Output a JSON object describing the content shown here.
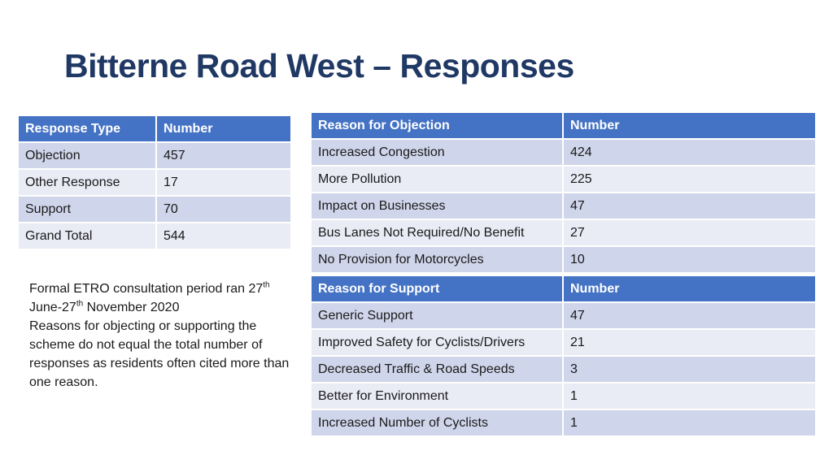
{
  "title": "Bitterne Road West – Responses",
  "response_table": {
    "headers": [
      "Response Type",
      "Number"
    ],
    "rows": [
      [
        "Objection",
        "457"
      ],
      [
        "Other Response",
        "17"
      ],
      [
        "Support",
        "70"
      ],
      [
        "Grand Total",
        "544"
      ]
    ]
  },
  "objection_table": {
    "headers": [
      "Reason for Objection",
      "Number"
    ],
    "rows": [
      [
        "Increased Congestion",
        "424"
      ],
      [
        "More Pollution",
        "225"
      ],
      [
        "Impact on Businesses",
        "47"
      ],
      [
        "Bus Lanes Not Required/No Benefit",
        "27"
      ],
      [
        "No Provision for Motorcycles",
        "10"
      ]
    ]
  },
  "support_table": {
    "headers": [
      "Reason for Support",
      "Number"
    ],
    "rows": [
      [
        "Generic Support",
        "47"
      ],
      [
        "Improved Safety for Cyclists/Drivers",
        "21"
      ],
      [
        "Decreased Traffic & Road Speeds",
        "3"
      ],
      [
        "Better for Environment",
        "1"
      ],
      [
        "Increased Number of Cyclists",
        "1"
      ]
    ]
  },
  "note": {
    "part1": "Formal ETRO consultation period ran 27",
    "sup1": "th",
    "part2": " June-27",
    "sup2": "th",
    "part3": " November 2020",
    "line2": "Reasons for objecting or supporting the scheme do not equal the total number of responses as residents often cited more than one reason."
  },
  "colors": {
    "title": "#1f3864",
    "header_bg": "#4472c4",
    "row_odd": "#cfd5ea",
    "row_even": "#e9ebf5"
  }
}
